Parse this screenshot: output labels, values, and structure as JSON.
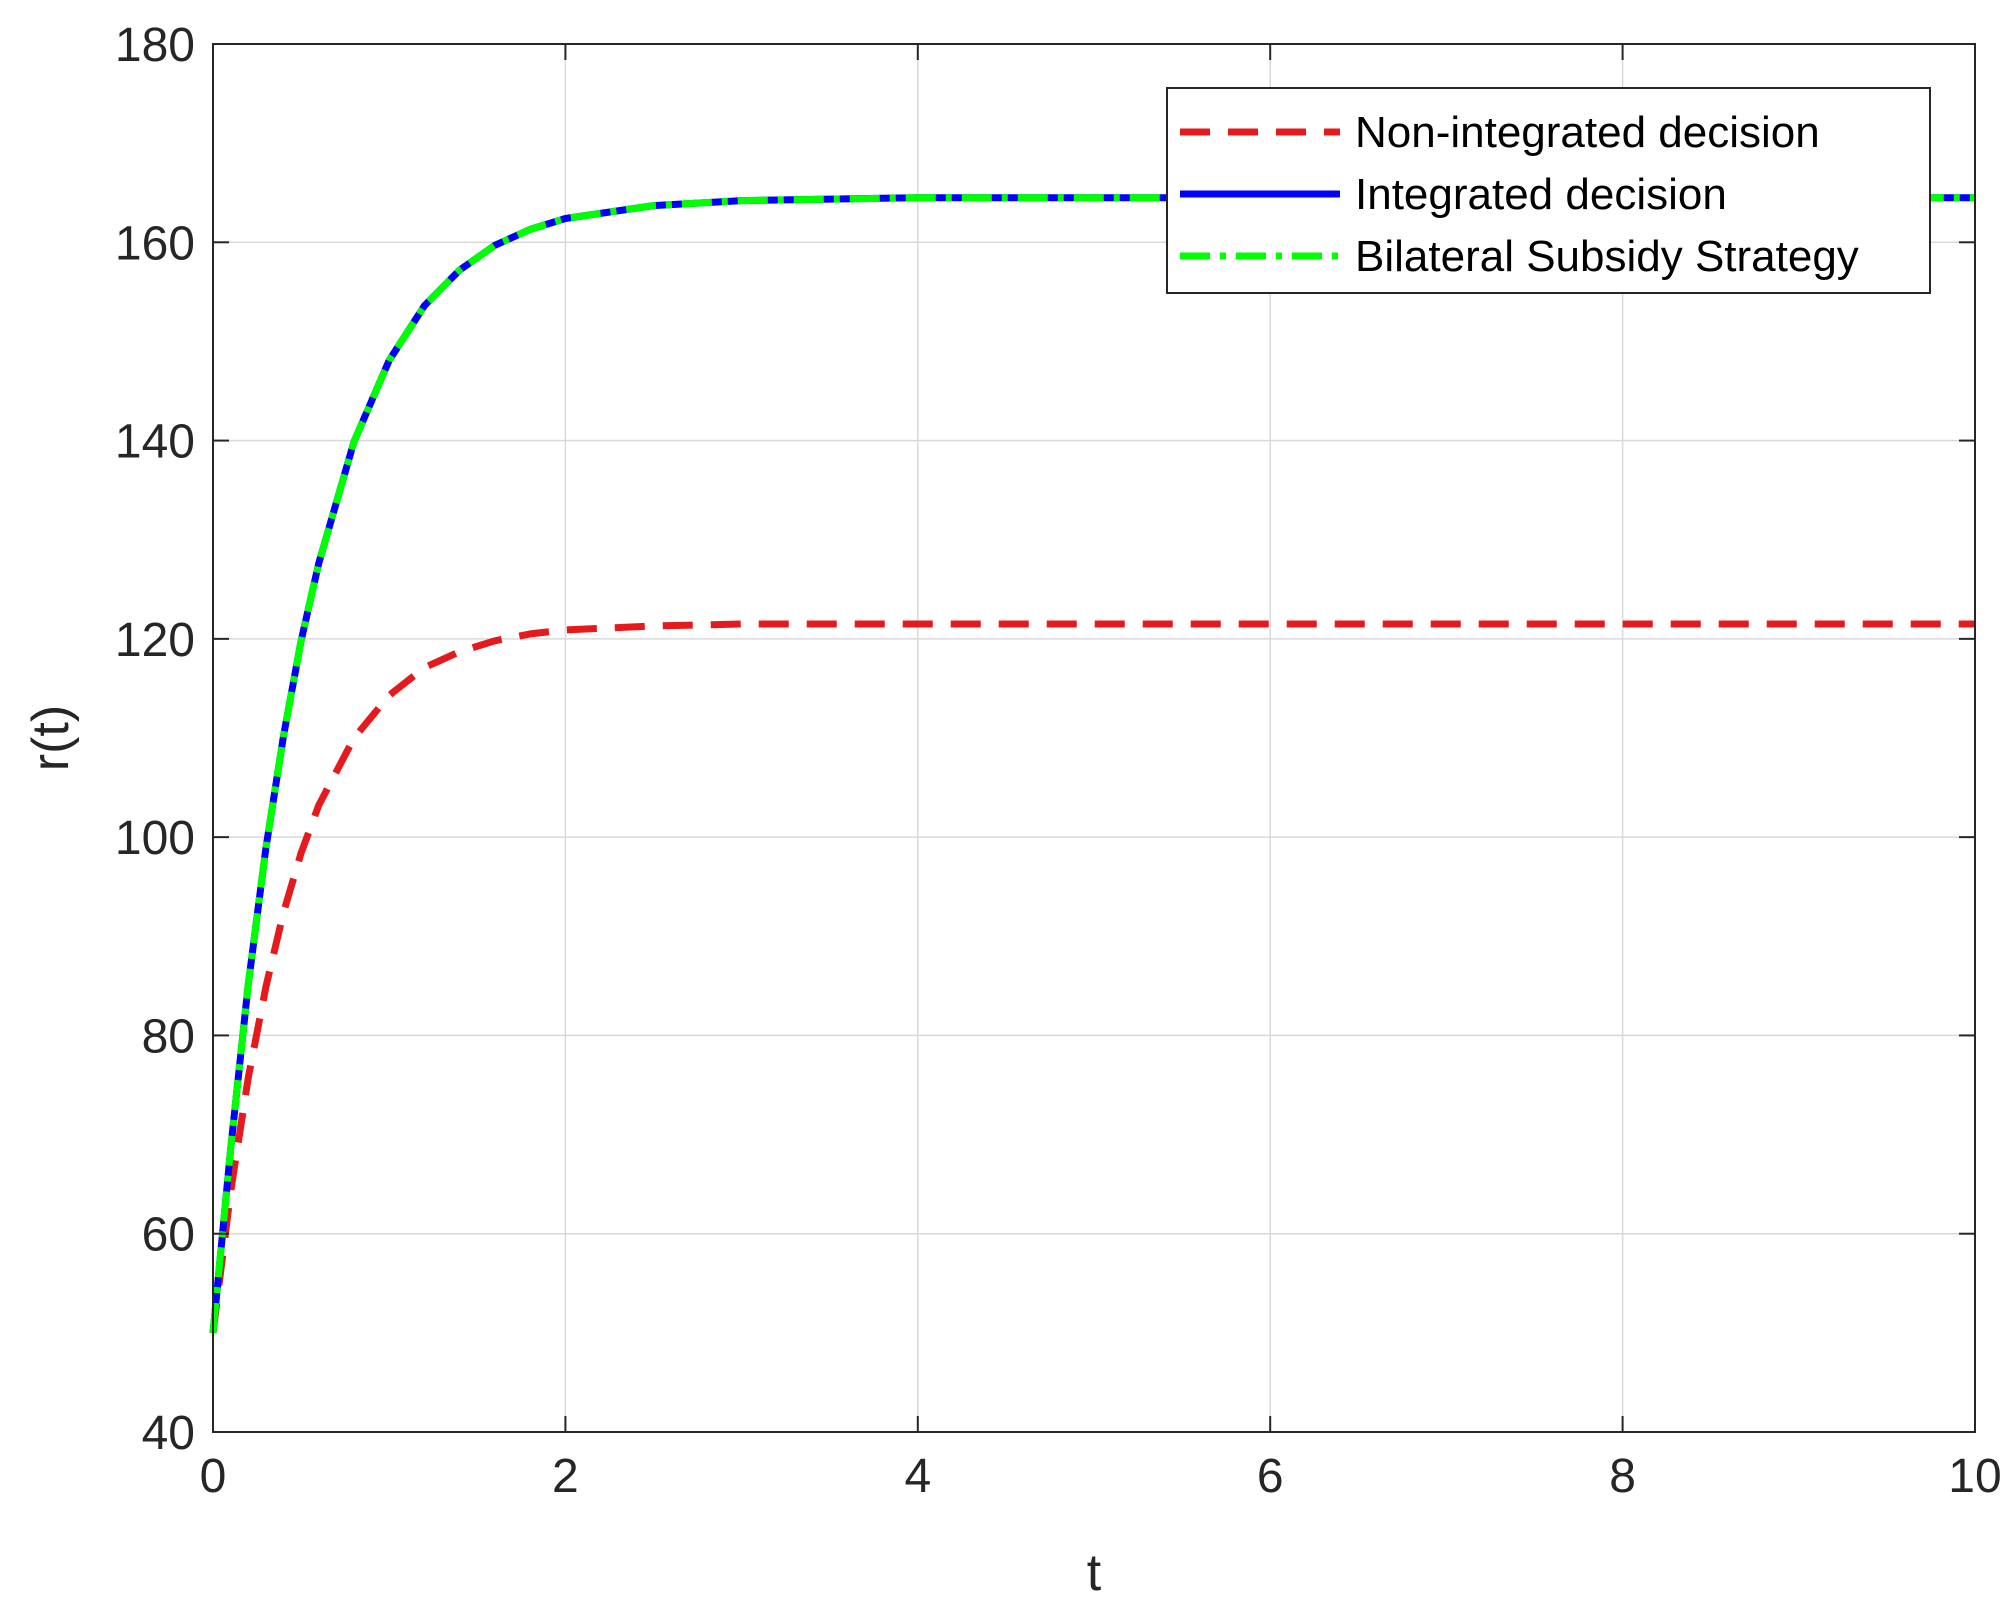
{
  "chart_data": {
    "type": "line",
    "title": "",
    "xlabel": "t",
    "ylabel": "r(t)",
    "xlim": [
      0,
      10
    ],
    "ylim": [
      40,
      180
    ],
    "xticks": [
      0,
      2,
      4,
      6,
      8,
      10
    ],
    "yticks": [
      40,
      60,
      80,
      100,
      120,
      140,
      160,
      180
    ],
    "grid": true,
    "legend_position": "top-right",
    "x": [
      0,
      0.1,
      0.2,
      0.3,
      0.4,
      0.5,
      0.6,
      0.8,
      1.0,
      1.2,
      1.4,
      1.6,
      1.8,
      2.0,
      2.5,
      3,
      4,
      5,
      6,
      7,
      8,
      9,
      10
    ],
    "series": [
      {
        "name": "Non-integrated decision",
        "color": "#e41a1c",
        "style": "dashed",
        "values": [
          50,
          64.2,
          75.7,
          84.9,
          92.4,
          98.4,
          103.2,
          110.0,
          114.3,
          117.1,
          118.7,
          119.8,
          120.5,
          120.9,
          121.3,
          121.5,
          121.5,
          121.5,
          121.5,
          121.5,
          121.5,
          121.5,
          121.5
        ]
      },
      {
        "name": "Integrated decision",
        "color": "#0000ff",
        "style": "solid",
        "values": [
          50,
          68.5,
          85.1,
          98.9,
          110.2,
          119.8,
          127.6,
          139.9,
          148.1,
          153.6,
          157.2,
          159.7,
          161.3,
          162.4,
          163.7,
          164.2,
          164.5,
          164.5,
          164.5,
          164.5,
          164.5,
          164.5,
          164.5
        ]
      },
      {
        "name": "Bilateral Subsidy Strategy",
        "color": "#00ff00",
        "style": "dashdot",
        "values": [
          50,
          68.5,
          85.1,
          98.9,
          110.2,
          119.8,
          127.6,
          139.9,
          148.1,
          153.6,
          157.2,
          159.7,
          161.3,
          162.4,
          163.7,
          164.2,
          164.5,
          164.5,
          164.5,
          164.5,
          164.5,
          164.5,
          164.5
        ]
      }
    ]
  }
}
